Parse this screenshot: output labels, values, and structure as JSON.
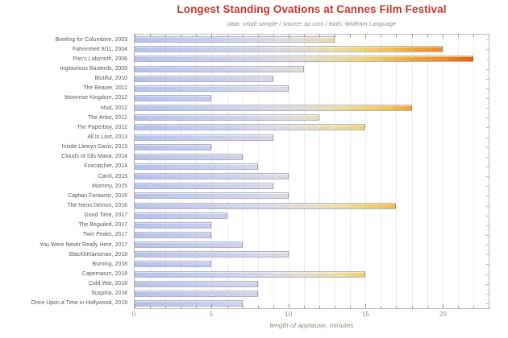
{
  "chart_data": {
    "type": "bar",
    "orientation": "horizontal",
    "title": "Longest Standing Ovations at Cannes Film Festival",
    "subtitle": "data: small sample / source: qz.com / tools: Wolfram Language",
    "xlabel": "length of applause, minutes",
    "xlim": [
      0,
      23
    ],
    "x_major_ticks": [
      0,
      5,
      10,
      15,
      20
    ],
    "x_minor_tick_step": 1,
    "grid": "vertical gridline every 1 minute",
    "legend": "none",
    "categories": [
      "Bowling for Columbine, 2003",
      "Fahrenheit 9/11, 2004",
      "Pan's Labyrinth, 2006",
      "Inglourious Basterds, 2009",
      "Biutiful, 2010",
      "The Beaver, 2011",
      "Moonrise Kingdom, 2012",
      "Mud, 2012",
      "The Artist, 2012",
      "The Paperboy, 2012",
      "All Is Lost, 2013",
      "Inside Llewyn Davis, 2013",
      "Clouds of Sils Maria, 2014",
      "Foxcatcher, 2014",
      "Carol, 2015",
      "Mommy, 2015",
      "Captain Fantastic, 2016",
      "The Neon Demon, 2016",
      "Good Time, 2017",
      "The Beguiled, 2017",
      "Twin Peaks, 2017",
      "You Were Never Really Here, 2017",
      "BlacKkKlansman, 2018",
      "Burning, 2018",
      "Capernaum, 2018",
      "Cold War, 2018",
      "Suspiria, 2018",
      "Once Upon a Time in Hollywood, 2019"
    ],
    "values": [
      13,
      20,
      22,
      11,
      9,
      10,
      5,
      18,
      12,
      15,
      9,
      5,
      7,
      8,
      10,
      9,
      10,
      17,
      6,
      5,
      5,
      7,
      10,
      5,
      15,
      8,
      8,
      7
    ],
    "colors": {
      "title": "#b93a2e",
      "subtitle_text": "#8a8a8a",
      "category_label": "#5a5a5a",
      "tick_label": "#8f8f8f",
      "axis_label": "#93897e",
      "frame": "#b8b8b8",
      "gridline": "#eaeaec"
    },
    "bar_gradient_stops": [
      [
        0.0,
        "#b6c1ec"
      ],
      [
        0.17,
        "#c4ccee"
      ],
      [
        0.3,
        "#cfd3eb"
      ],
      [
        0.39,
        "#d9d9e6"
      ],
      [
        0.48,
        "#e3dcce"
      ],
      [
        0.565,
        "#ecdca4"
      ],
      [
        0.65,
        "#f1d276"
      ],
      [
        0.72,
        "#f3c050"
      ],
      [
        0.78,
        "#f3a836"
      ],
      [
        0.87,
        "#ef8c20"
      ],
      [
        0.935,
        "#e96c12"
      ],
      [
        1.0,
        "#e2500a"
      ]
    ]
  }
}
